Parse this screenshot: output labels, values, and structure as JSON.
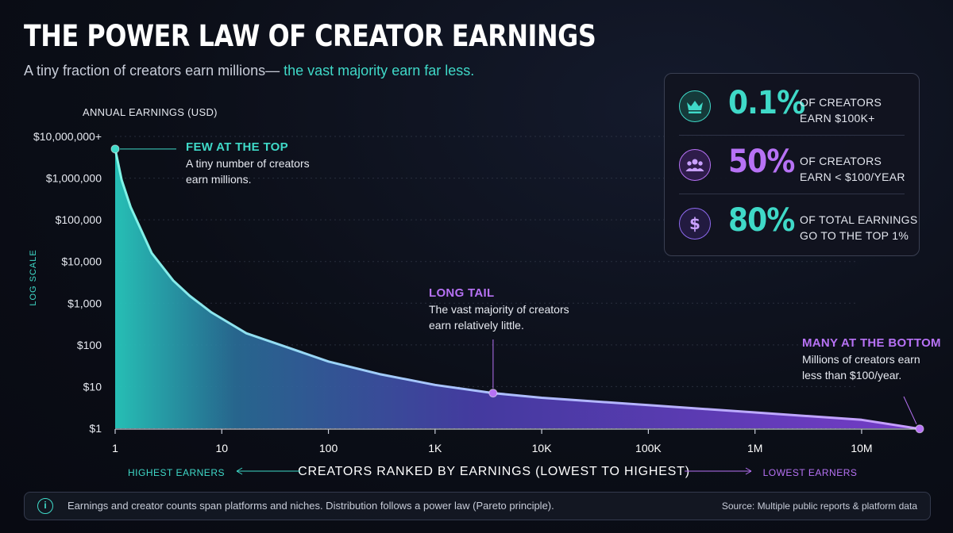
{
  "title": "THE POWER LAW OF CREATOR EARNINGS",
  "subtitle": {
    "lead": "A tiny fraction of creators earn millions—",
    "highlight": " the vast majority earn far less."
  },
  "stats": [
    {
      "icon": "crown-icon",
      "value": "0.1%",
      "line1": "OF CREATORS",
      "line2": "EARN $100K+",
      "color": "#3fd9c8"
    },
    {
      "icon": "people-icon",
      "value": "50%",
      "line1": "OF CREATORS",
      "line2": "EARN < $100/YEAR",
      "color": "#b772f5"
    },
    {
      "icon": "dollar-icon",
      "value": "80%",
      "line1": "OF TOTAL EARNINGS",
      "line2": "GO TO THE TOP 1%",
      "color": "#3fd9c8"
    }
  ],
  "chart_data": {
    "type": "area",
    "ylabel": "ANNUAL EARNINGS (USD)",
    "ylabel_side": "LOG SCALE",
    "xlabel": "CREATORS RANKED BY EARNINGS (LOWEST TO HIGHEST)",
    "x_left_label": "HIGHEST EARNERS",
    "x_right_label": "LOWEST EARNERS",
    "x_scale": "log",
    "y_scale": "log",
    "xlim": [
      1,
      35000000
    ],
    "ylim": [
      1,
      10000000
    ],
    "y_ticks": [
      {
        "value": 1,
        "label": "$1"
      },
      {
        "value": 10,
        "label": "$10"
      },
      {
        "value": 100,
        "label": "$100"
      },
      {
        "value": 1000,
        "label": "$1,000"
      },
      {
        "value": 10000,
        "label": "$10,000"
      },
      {
        "value": 100000,
        "label": "$100,000"
      },
      {
        "value": 1000000,
        "label": "$1,000,000"
      },
      {
        "value": 10000000,
        "label": "$10,000,000+"
      }
    ],
    "x_ticks": [
      {
        "value": 1,
        "label": "1"
      },
      {
        "value": 10,
        "label": "10"
      },
      {
        "value": 100,
        "label": "100"
      },
      {
        "value": 1000,
        "label": "1K"
      },
      {
        "value": 10000,
        "label": "10K"
      },
      {
        "value": 100000,
        "label": "100K"
      },
      {
        "value": 1000000,
        "label": "1M"
      },
      {
        "value": 10000000,
        "label": "10M"
      }
    ],
    "points": [
      {
        "x": 1,
        "y": 5000000
      },
      {
        "x": 1.15,
        "y": 900000
      },
      {
        "x": 1.4,
        "y": 200000
      },
      {
        "x": 2.2,
        "y": 16000
      },
      {
        "x": 3.5,
        "y": 3500
      },
      {
        "x": 5,
        "y": 1500
      },
      {
        "x": 8,
        "y": 600
      },
      {
        "x": 17,
        "y": 190
      },
      {
        "x": 40,
        "y": 90
      },
      {
        "x": 100,
        "y": 40
      },
      {
        "x": 300,
        "y": 20
      },
      {
        "x": 1000,
        "y": 11
      },
      {
        "x": 3500,
        "y": 7
      },
      {
        "x": 10000,
        "y": 5.4
      },
      {
        "x": 100000,
        "y": 3.6
      },
      {
        "x": 1000000,
        "y": 2.4
      },
      {
        "x": 10000000,
        "y": 1.6
      },
      {
        "x": 35000000,
        "y": 0.97
      }
    ],
    "annotations": [
      {
        "id": "top",
        "x": 1,
        "y": 5000000,
        "title": "FEW AT THE TOP",
        "lines": [
          "A tiny number of creators",
          "earn millions."
        ],
        "color": "#3fd9c8"
      },
      {
        "id": "tail",
        "x": 3500,
        "y": 7,
        "title": "LONG TAIL",
        "lines": [
          "The vast majority of creators",
          "earn relatively little."
        ],
        "color": "#b772f5"
      },
      {
        "id": "bottom",
        "x": 35000000,
        "y": 0.97,
        "title": "MANY AT THE BOTTOM",
        "lines": [
          "Millions of creators earn",
          "less than $100/year."
        ],
        "color": "#b772f5"
      }
    ],
    "colors": {
      "teal": "#3fd9c8",
      "purple": "#b772f5",
      "line": "#9fc8ff"
    }
  },
  "footer": {
    "note": "Earnings and creator counts span platforms and niches. Distribution follows a power law (Pareto principle).",
    "source": "Source: Multiple public reports & platform data"
  }
}
